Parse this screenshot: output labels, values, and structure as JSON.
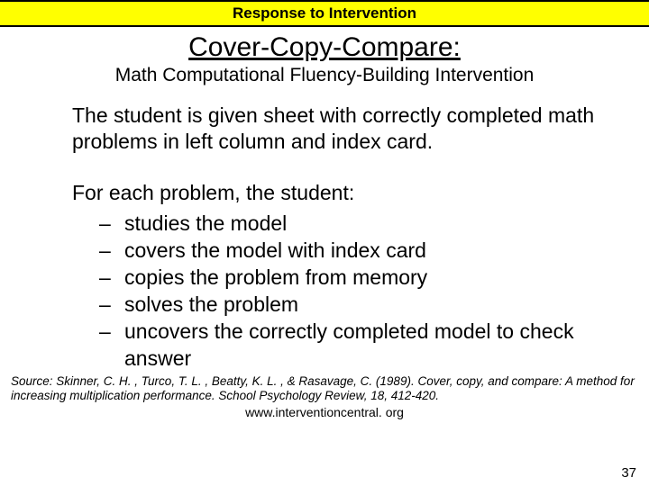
{
  "header": "Response to Intervention",
  "title": "Cover-Copy-Compare:",
  "subtitle": "Math Computational Fluency-Building Intervention",
  "intro": "The student is given sheet with correctly completed math problems in left column and index card.",
  "lead": "For each problem, the student:",
  "bullets": [
    "studies the model",
    "covers the model with index card",
    "copies the problem from memory",
    "solves the problem",
    "uncovers the correctly completed model to check answer"
  ],
  "source": "Source: Skinner, C. H. , Turco, T. L. , Beatty, K. L. , & Rasavage, C. (1989). Cover, copy, and compare: A method for increasing multiplication performance. School Psychology Review, 18, 412-420.",
  "url": "www.interventioncentral. org",
  "page": "37"
}
